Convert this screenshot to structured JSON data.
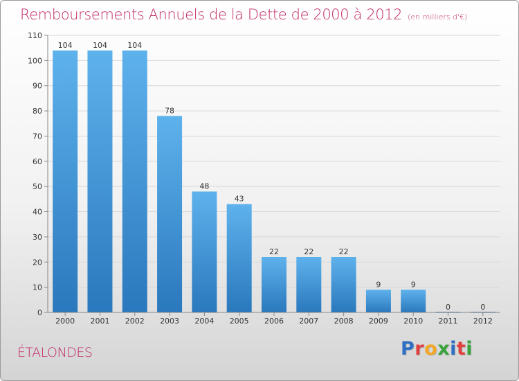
{
  "title": "Remboursements Annuels de la Dette de 2000 à 2012",
  "subtitle": "(en milliers d'€)",
  "location": "ÉTALONDES",
  "logo": {
    "text": "Proxiti",
    "letters": [
      {
        "ch": "P",
        "color": "#2e6fc4"
      },
      {
        "ch": "r",
        "color": "#e2403e"
      },
      {
        "ch": "o",
        "color": "#f3a825"
      },
      {
        "ch": "x",
        "color": "#3aa33c"
      },
      {
        "ch": "i",
        "color": "#2e6fc4"
      },
      {
        "ch": "t",
        "color": "#e2403e"
      },
      {
        "ch": "i",
        "color": "#3aa33c"
      }
    ]
  },
  "chart_data": {
    "type": "bar",
    "categories": [
      "2000",
      "2001",
      "2002",
      "2003",
      "2004",
      "2005",
      "2006",
      "2007",
      "2008",
      "2009",
      "2010",
      "2011",
      "2012"
    ],
    "values": [
      104,
      104,
      104,
      78,
      48,
      43,
      22,
      22,
      22,
      9,
      9,
      0,
      0
    ],
    "ylim": [
      0,
      110
    ],
    "yticks": [
      0,
      10,
      20,
      30,
      40,
      50,
      60,
      70,
      80,
      90,
      100,
      110
    ],
    "grid": true,
    "colors": {
      "bar_top": "#5eb2ec",
      "bar_bottom": "#2a78bd",
      "grid": "#d8d8d8",
      "title": "#c02a68"
    }
  }
}
